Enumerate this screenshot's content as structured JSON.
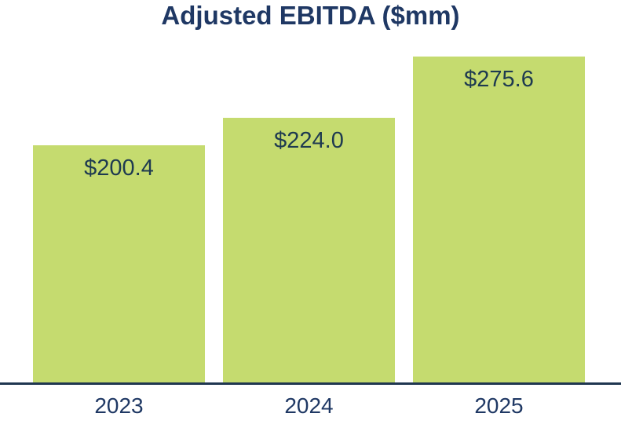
{
  "chart_data": {
    "type": "bar",
    "title": "Adjusted EBITDA ($mm)",
    "categories": [
      "2023",
      "2024",
      "2025"
    ],
    "values": [
      200.4,
      224.0,
      275.6
    ],
    "value_labels": [
      "$200.4",
      "$224.0",
      "$275.6"
    ],
    "value_label_position": "inside-top",
    "xlabel": "",
    "ylabel": "",
    "ylim": [
      0,
      275.6
    ],
    "grid": false,
    "legend": false,
    "colors": {
      "bar_fill": "#C5DB6F",
      "title_text": "#1F3864",
      "value_label_text": "#1E3A50",
      "axis_line": "#1F3650",
      "category_label_text": "#1F3864",
      "background": "#FFFFFF"
    }
  }
}
